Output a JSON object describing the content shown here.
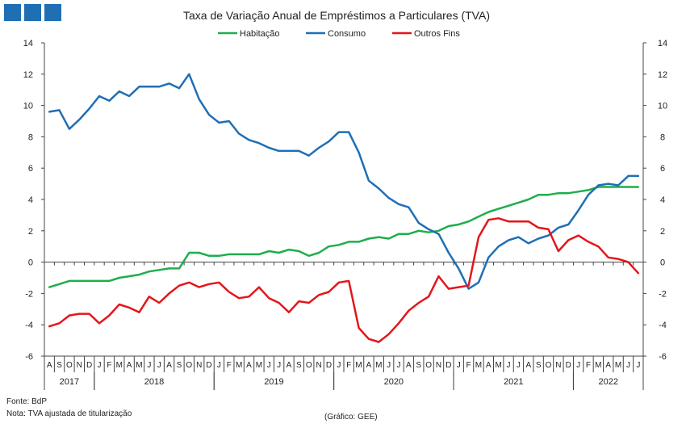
{
  "logo": {
    "color": "#1f6fb5"
  },
  "notes": {
    "source": "Fonte: BdP",
    "note": "Nota: TVA ajustada de titularização",
    "credit": "(Gráfico: GEE)"
  },
  "chart_data": {
    "type": "line",
    "title": "Taxa de Variação Anual de Empréstimos  a Particulares (TVA)",
    "ylim": [
      -6,
      14
    ],
    "yticks": [
      -6,
      -4,
      -2,
      0,
      2,
      4,
      6,
      8,
      10,
      12,
      14
    ],
    "legend_position": "top-center",
    "grid": false,
    "secondary_axis": true,
    "months": [
      "A",
      "S",
      "O",
      "N",
      "D",
      "J",
      "F",
      "M",
      "A",
      "M",
      "J",
      "J",
      "A",
      "S",
      "O",
      "N",
      "D",
      "J",
      "F",
      "M",
      "A",
      "M",
      "J",
      "J",
      "A",
      "S",
      "O",
      "N",
      "D",
      "J",
      "F",
      "M",
      "A",
      "M",
      "J",
      "J",
      "A",
      "S",
      "O",
      "N",
      "D",
      "J",
      "F",
      "M",
      "A",
      "M",
      "J",
      "J",
      "A",
      "S",
      "O",
      "N",
      "D",
      "J",
      "F",
      "M",
      "A",
      "M",
      "J",
      "J"
    ],
    "years": [
      {
        "label": "2017",
        "from": 0,
        "to": 4
      },
      {
        "label": "2018",
        "from": 5,
        "to": 16
      },
      {
        "label": "2019",
        "from": 17,
        "to": 28
      },
      {
        "label": "2020",
        "from": 29,
        "to": 40
      },
      {
        "label": "2021",
        "from": 41,
        "to": 52
      },
      {
        "label": "2022",
        "from": 53,
        "to": 59
      }
    ],
    "series": [
      {
        "name": "Habitação",
        "color": "#1fae4b",
        "values": [
          -1.6,
          -1.4,
          -1.2,
          -1.2,
          -1.2,
          -1.2,
          -1.2,
          -1.0,
          -0.9,
          -0.8,
          -0.6,
          -0.5,
          -0.4,
          -0.4,
          0.6,
          0.6,
          0.4,
          0.4,
          0.5,
          0.5,
          0.5,
          0.5,
          0.7,
          0.6,
          0.8,
          0.7,
          0.4,
          0.6,
          1.0,
          1.1,
          1.3,
          1.3,
          1.5,
          1.6,
          1.5,
          1.8,
          1.8,
          2.0,
          1.9,
          2.0,
          2.3,
          2.4,
          2.6,
          2.9,
          3.2,
          3.4,
          3.6,
          3.8,
          4.0,
          4.3,
          4.3,
          4.4,
          4.4,
          4.5,
          4.6,
          4.8,
          4.8,
          4.8,
          4.8,
          4.8
        ]
      },
      {
        "name": "Consumo",
        "color": "#1f6fb5",
        "values": [
          9.6,
          9.7,
          8.5,
          9.1,
          9.8,
          10.6,
          10.3,
          10.9,
          10.6,
          11.2,
          11.2,
          11.2,
          11.4,
          11.1,
          12.0,
          10.4,
          9.4,
          8.9,
          9.0,
          8.2,
          7.8,
          7.6,
          7.3,
          7.1,
          7.1,
          7.1,
          6.8,
          7.3,
          7.7,
          8.3,
          8.3,
          7.0,
          5.2,
          4.7,
          4.1,
          3.7,
          3.5,
          2.5,
          2.1,
          1.8,
          0.6,
          -0.4,
          -1.7,
          -1.3,
          0.3,
          1.0,
          1.4,
          1.6,
          1.2,
          1.5,
          1.7,
          2.2,
          2.4,
          3.3,
          4.3,
          4.9,
          5.0,
          4.9,
          5.5,
          5.5
        ]
      },
      {
        "name": "Outros Fins",
        "color": "#e3161b",
        "values": [
          -4.1,
          -3.9,
          -3.4,
          -3.3,
          -3.3,
          -3.9,
          -3.4,
          -2.7,
          -2.9,
          -3.2,
          -2.2,
          -2.6,
          -2.0,
          -1.5,
          -1.3,
          -1.6,
          -1.4,
          -1.3,
          -1.9,
          -2.3,
          -2.2,
          -1.6,
          -2.3,
          -2.6,
          -3.2,
          -2.5,
          -2.6,
          -2.1,
          -1.9,
          -1.3,
          -1.2,
          -4.2,
          -4.9,
          -5.1,
          -4.6,
          -3.9,
          -3.1,
          -2.6,
          -2.2,
          -0.9,
          -1.7,
          -1.6,
          -1.5,
          1.6,
          2.7,
          2.8,
          2.6,
          2.6,
          2.6,
          2.2,
          2.1,
          0.7,
          1.4,
          1.7,
          1.3,
          1.0,
          0.3,
          0.2,
          0.0,
          -0.7
        ]
      }
    ]
  }
}
